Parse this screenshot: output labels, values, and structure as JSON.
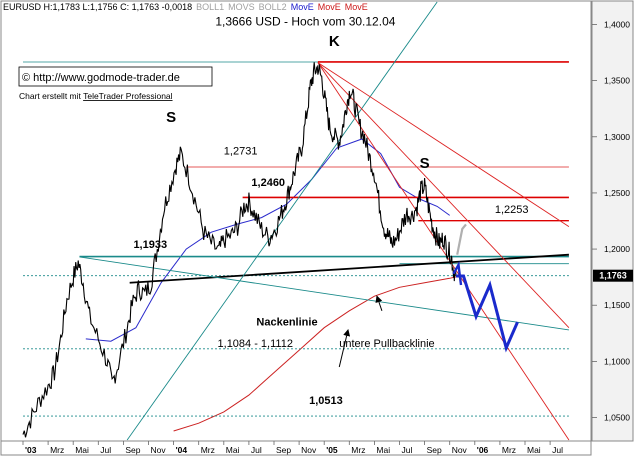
{
  "header": {
    "symbol_line": "EURUSD H:1,1783 L:1,1756 C: 1,1763 -0,0018",
    "indicators": [
      {
        "label": "BOLL1",
        "color": "#a0a0a0"
      },
      {
        "label": "MOVS",
        "color": "#a0a0a0"
      },
      {
        "label": "BOLL2",
        "color": "#a0a0a0"
      },
      {
        "label": "MovE",
        "color": "#1a1acc"
      },
      {
        "label": "MovE",
        "color": "#cc1a1a"
      },
      {
        "label": "MovE",
        "color": "#cc1a1a"
      }
    ]
  },
  "credits": {
    "copyright": "© http://www.godmode-trader.de",
    "created_prefix": "Chart erstellt mit ",
    "created_tool": "TeleTrader Professional"
  },
  "chart_data": {
    "type": "line",
    "series_name": "EURUSD",
    "last_price": "1,1763",
    "last_price_value": 1.1763,
    "ylim": [
      1.03,
      1.42
    ],
    "y_ticks": [
      {
        "value": 1.05,
        "label": "1,0500"
      },
      {
        "value": 1.1,
        "label": "1,1000"
      },
      {
        "value": 1.15,
        "label": "1,1500"
      },
      {
        "value": 1.2,
        "label": "1,2000"
      },
      {
        "value": 1.25,
        "label": "1,2500"
      },
      {
        "value": 1.3,
        "label": "1,3000"
      },
      {
        "value": 1.35,
        "label": "1,3500"
      },
      {
        "value": 1.4,
        "label": "1,4000"
      }
    ],
    "x_ticks": [
      {
        "m": 0,
        "label": "'03",
        "bold": true
      },
      {
        "m": 2,
        "label": "Mrz"
      },
      {
        "m": 4,
        "label": "Mai"
      },
      {
        "m": 6,
        "label": "Jul"
      },
      {
        "m": 8,
        "label": "Sep"
      },
      {
        "m": 10,
        "label": "Nov"
      },
      {
        "m": 12,
        "label": "'04",
        "bold": true
      },
      {
        "m": 14,
        "label": "Mrz"
      },
      {
        "m": 16,
        "label": "Mai"
      },
      {
        "m": 18,
        "label": "Jul"
      },
      {
        "m": 20,
        "label": "Sep"
      },
      {
        "m": 22,
        "label": "Nov"
      },
      {
        "m": 24,
        "label": "'05",
        "bold": true
      },
      {
        "m": 26,
        "label": "Mrz"
      },
      {
        "m": 28,
        "label": "Mai"
      },
      {
        "m": 30,
        "label": "Jul"
      },
      {
        "m": 32,
        "label": "Sep"
      },
      {
        "m": 34,
        "label": "Nov"
      },
      {
        "m": 36,
        "label": "'06",
        "bold": true
      },
      {
        "m": 38,
        "label": "Mrz"
      },
      {
        "m": 40,
        "label": "Mai"
      },
      {
        "m": 42,
        "label": "Jul"
      }
    ],
    "price_path": [
      [
        0.0,
        1.035
      ],
      [
        0.6,
        1.048
      ],
      [
        1.3,
        1.065
      ],
      [
        2.0,
        1.078
      ],
      [
        2.5,
        1.09
      ],
      [
        3.0,
        1.12
      ],
      [
        3.5,
        1.155
      ],
      [
        4.0,
        1.175
      ],
      [
        4.4,
        1.188
      ],
      [
        4.8,
        1.17
      ],
      [
        5.3,
        1.14
      ],
      [
        6.0,
        1.12
      ],
      [
        6.7,
        1.1
      ],
      [
        7.1,
        1.08
      ],
      [
        7.6,
        1.098
      ],
      [
        8.2,
        1.125
      ],
      [
        8.7,
        1.15
      ],
      [
        9.2,
        1.165
      ],
      [
        9.7,
        1.16
      ],
      [
        10.2,
        1.17
      ],
      [
        10.7,
        1.2
      ],
      [
        11.2,
        1.235
      ],
      [
        11.7,
        1.255
      ],
      [
        12.2,
        1.275
      ],
      [
        12.6,
        1.285
      ],
      [
        13.2,
        1.265
      ],
      [
        13.8,
        1.24
      ],
      [
        14.4,
        1.215
      ],
      [
        15.0,
        1.205
      ],
      [
        15.6,
        1.198
      ],
      [
        16.0,
        1.208
      ],
      [
        16.6,
        1.212
      ],
      [
        17.1,
        1.22
      ],
      [
        17.6,
        1.238
      ],
      [
        18.0,
        1.242
      ],
      [
        18.5,
        1.23
      ],
      [
        19.0,
        1.218
      ],
      [
        19.6,
        1.21
      ],
      [
        20.1,
        1.218
      ],
      [
        20.6,
        1.232
      ],
      [
        21.0,
        1.245
      ],
      [
        21.4,
        1.26
      ],
      [
        21.8,
        1.275
      ],
      [
        22.2,
        1.29
      ],
      [
        22.6,
        1.32
      ],
      [
        22.9,
        1.345
      ],
      [
        23.2,
        1.358
      ],
      [
        23.5,
        1.362
      ],
      [
        23.8,
        1.352
      ],
      [
        24.1,
        1.33
      ],
      [
        24.4,
        1.31
      ],
      [
        24.8,
        1.3
      ],
      [
        25.2,
        1.296
      ],
      [
        25.5,
        1.31
      ],
      [
        25.8,
        1.33
      ],
      [
        26.1,
        1.343
      ],
      [
        26.4,
        1.33
      ],
      [
        26.8,
        1.31
      ],
      [
        27.2,
        1.3
      ],
      [
        27.6,
        1.282
      ],
      [
        28.0,
        1.268
      ],
      [
        28.4,
        1.24
      ],
      [
        28.8,
        1.218
      ],
      [
        29.1,
        1.212
      ],
      [
        29.4,
        1.205
      ],
      [
        29.8,
        1.21
      ],
      [
        30.2,
        1.222
      ],
      [
        30.6,
        1.232
      ],
      [
        31.0,
        1.23
      ],
      [
        31.4,
        1.238
      ],
      [
        31.7,
        1.252
      ],
      [
        32.0,
        1.256
      ],
      [
        32.3,
        1.238
      ],
      [
        32.6,
        1.222
      ],
      [
        32.9,
        1.212
      ],
      [
        33.2,
        1.205
      ],
      [
        33.5,
        1.21
      ],
      [
        33.8,
        1.2
      ],
      [
        34.1,
        1.195
      ],
      [
        34.3,
        1.182
      ],
      [
        34.5,
        1.176
      ]
    ],
    "mov_blue": [
      [
        5.0,
        1.12
      ],
      [
        7.0,
        1.118
      ],
      [
        9.0,
        1.13
      ],
      [
        11.0,
        1.17
      ],
      [
        13.0,
        1.2
      ],
      [
        15.0,
        1.215
      ],
      [
        17.0,
        1.222
      ],
      [
        19.0,
        1.228
      ],
      [
        21.0,
        1.24
      ],
      [
        23.0,
        1.262
      ],
      [
        25.0,
        1.29
      ],
      [
        27.0,
        1.298
      ],
      [
        28.5,
        1.285
      ],
      [
        30.0,
        1.255
      ],
      [
        31.5,
        1.245
      ],
      [
        33.0,
        1.238
      ],
      [
        34.0,
        1.23
      ]
    ],
    "mov_red": [
      [
        12.0,
        1.038
      ],
      [
        14.0,
        1.045
      ],
      [
        16.0,
        1.055
      ],
      [
        18.0,
        1.07
      ],
      [
        20.0,
        1.09
      ],
      [
        22.0,
        1.11
      ],
      [
        24.0,
        1.13
      ],
      [
        26.0,
        1.145
      ],
      [
        28.0,
        1.158
      ],
      [
        30.0,
        1.166
      ],
      [
        32.0,
        1.17
      ],
      [
        34.0,
        1.174
      ],
      [
        34.8,
        1.176
      ]
    ],
    "projection": [
      [
        34.5,
        1.176
      ],
      [
        35.1,
        1.176
      ],
      [
        36.1,
        1.14
      ],
      [
        37.2,
        1.168
      ],
      [
        38.5,
        1.112
      ],
      [
        39.4,
        1.135
      ]
    ],
    "projection_hook": [
      [
        34.3,
        1.178
      ],
      [
        34.7,
        1.186
      ],
      [
        34.9,
        1.168
      ]
    ],
    "gray_hook": [
      [
        34.6,
        1.195
      ],
      [
        35.0,
        1.218
      ],
      [
        35.3,
        1.222
      ]
    ],
    "h_lines": [
      {
        "y": 1.3666,
        "x0": 0.0,
        "x1": 43.5,
        "color": "#1a8a8a",
        "w": 0.8
      },
      {
        "y": 1.3666,
        "x0": 23.5,
        "x1": 43.5,
        "color": "#dd0000",
        "w": 1.6
      },
      {
        "y": 1.2731,
        "x0": 13.0,
        "x1": 43.5,
        "color": "#dd2222",
        "w": 0.8
      },
      {
        "y": 1.246,
        "x0": 17.5,
        "x1": 43.5,
        "color": "#dd0000",
        "w": 1.6
      },
      {
        "y": 1.2253,
        "x0": 31.5,
        "x1": 43.5,
        "color": "#dd0000",
        "w": 1.4
      },
      {
        "y": 1.1933,
        "x0": 4.5,
        "x1": 43.5,
        "color": "#1a8a8a",
        "w": 1.6
      },
      {
        "y": 1.187,
        "x0": 30.0,
        "x1": 43.5,
        "color": "#1a8a8a",
        "w": 0.8
      },
      {
        "y": 1.1112,
        "x0": 0.0,
        "x1": 43.5,
        "color": "#1a8a8a",
        "w": 0.8,
        "dash": "2,2"
      },
      {
        "y": 1.1763,
        "x0": 0.0,
        "x1": 43.5,
        "color": "#1a8a8a",
        "w": 0.8,
        "dash": "2,2"
      },
      {
        "y": 1.0513,
        "x0": 0.0,
        "x1": 43.5,
        "color": "#1a8a8a",
        "w": 0.8,
        "dash": "2,2"
      }
    ],
    "trend_lines": [
      {
        "p0": [
          8.5,
          1.17
        ],
        "p1": [
          43.5,
          1.195
        ],
        "color": "#000000",
        "w": 1.8
      },
      {
        "p0": [
          4.5,
          1.193
        ],
        "p1": [
          43.5,
          1.128
        ],
        "color": "#1a8a8a",
        "w": 0.9
      },
      {
        "p0": [
          8.3,
          1.03
        ],
        "p1": [
          33.0,
          1.42
        ],
        "color": "#1a8a8a",
        "w": 0.9
      },
      {
        "p0": [
          23.5,
          1.366
        ],
        "p1": [
          43.5,
          1.22
        ],
        "color": "#dd2222",
        "w": 0.9
      },
      {
        "p0": [
          23.5,
          1.366
        ],
        "p1": [
          43.5,
          1.13
        ],
        "color": "#dd2222",
        "w": 0.9
      },
      {
        "p0": [
          23.5,
          1.366
        ],
        "p1": [
          43.5,
          1.03
        ],
        "color": "#dd2222",
        "w": 0.9
      }
    ],
    "arrows": [
      {
        "from": [
          28.6,
          1.145
        ],
        "to": [
          28.2,
          1.158
        ]
      },
      {
        "from": [
          25.2,
          1.095
        ],
        "to": [
          25.9,
          1.128
        ]
      }
    ],
    "annotations": [
      {
        "text": "1,3666 USD - Hoch vom 30.12.04",
        "x": 22.5,
        "y": 1.399,
        "anchor": "middle",
        "bold": false,
        "size": 12
      },
      {
        "text": "K",
        "x": 24.8,
        "y": 1.381,
        "anchor": "middle",
        "bold": true,
        "size": 15
      },
      {
        "text": "S",
        "x": 11.8,
        "y": 1.313,
        "anchor": "middle",
        "bold": true,
        "size": 15
      },
      {
        "text": "S",
        "x": 32.0,
        "y": 1.272,
        "anchor": "middle",
        "bold": true,
        "size": 15
      },
      {
        "text": "1,2731",
        "x": 16.0,
        "y": 1.284,
        "anchor": "start",
        "bold": false,
        "size": 11
      },
      {
        "text": "1,2460",
        "x": 18.2,
        "y": 1.256,
        "anchor": "start",
        "bold": true,
        "size": 11
      },
      {
        "text": "1,2253",
        "x": 37.6,
        "y": 1.232,
        "anchor": "start",
        "bold": false,
        "size": 11
      },
      {
        "text": "1,1933",
        "x": 8.8,
        "y": 1.201,
        "anchor": "start",
        "bold": true,
        "size": 11
      },
      {
        "text": "Nackenlinie",
        "x": 18.6,
        "y": 1.132,
        "anchor": "start",
        "bold": true,
        "size": 11
      },
      {
        "text": "1,1084 - 1,1112",
        "x": 15.5,
        "y": 1.113,
        "anchor": "start",
        "bold": false,
        "size": 11
      },
      {
        "text": "untere Pullbacklinie",
        "x": 25.2,
        "y": 1.113,
        "anchor": "start",
        "bold": false,
        "size": 11
      },
      {
        "text": "1,0513",
        "x": 22.8,
        "y": 1.062,
        "anchor": "start",
        "bold": true,
        "size": 11
      }
    ]
  }
}
